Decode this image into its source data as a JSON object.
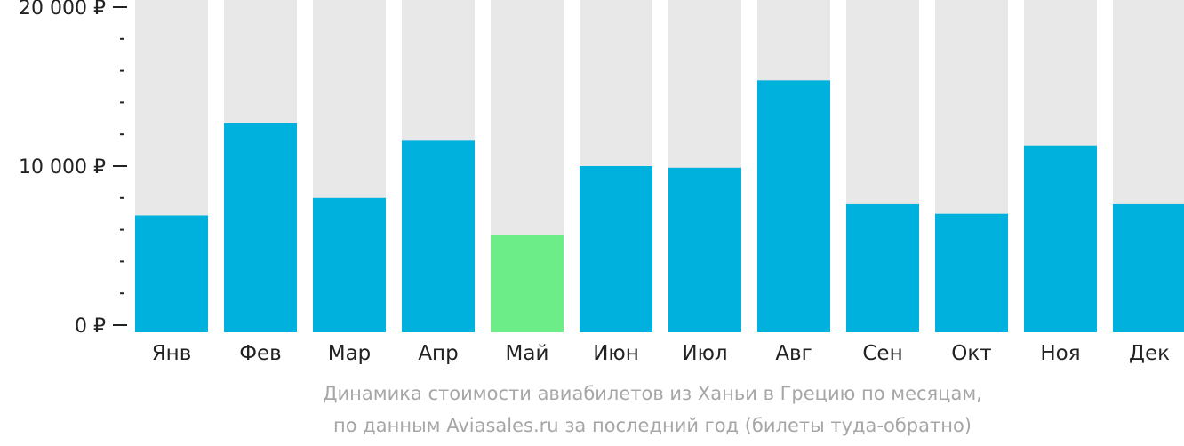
{
  "chart_data": {
    "type": "bar",
    "categories": [
      "Янв",
      "Фев",
      "Мар",
      "Апр",
      "Май",
      "Июн",
      "Июл",
      "Авг",
      "Сен",
      "Окт",
      "Ноя",
      "Дек"
    ],
    "values": [
      6900,
      12700,
      8000,
      11600,
      5700,
      10000,
      9900,
      15400,
      7600,
      7000,
      11300,
      7600
    ],
    "highlight_index": 4,
    "ylim": [
      0,
      20000
    ],
    "yticks": [
      {
        "value": 0,
        "label": "0 ₽"
      },
      {
        "value": 10000,
        "label": "10 000 ₽"
      },
      {
        "value": 20000,
        "label": "20 000 ₽"
      }
    ],
    "minor_tick_step": 2000,
    "colors": {
      "bar": "#00b0dd",
      "highlight": "#6ced87",
      "track": "#e8e8e8",
      "axis": "#222222",
      "tick_label": "#222222",
      "caption": "#a6a6a6"
    }
  },
  "caption": {
    "line1": "Динамика стоимости авиабилетов из Ханьи в Грецию по месяцам,",
    "line2": "по данным Aviasales.ru за последний год (билеты туда-обратно)"
  }
}
